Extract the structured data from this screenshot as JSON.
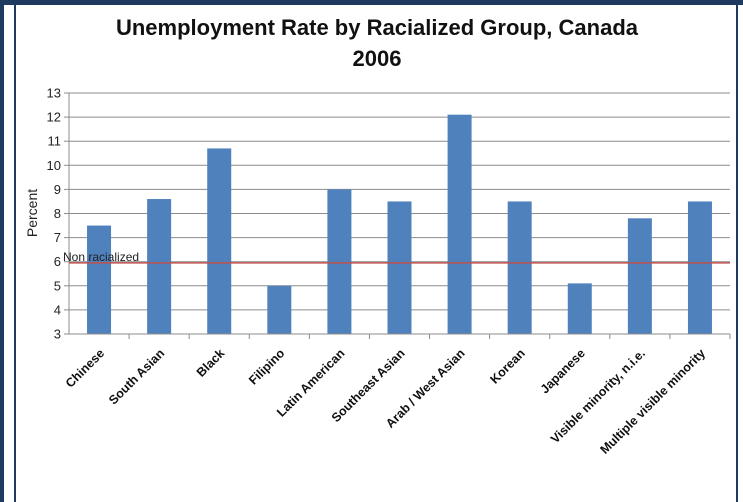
{
  "chart_data": {
    "type": "bar",
    "title_line1": "Unemployment Rate by Racialized Group, Canada",
    "title_line2": "2006",
    "xlabel": "",
    "ylabel": "Percent",
    "ylim": [
      3,
      13
    ],
    "yticks": [
      "3",
      "4",
      "5",
      "6",
      "7",
      "8",
      "9",
      "10",
      "11",
      "12",
      "13"
    ],
    "grid": true,
    "categories": [
      "Chinese",
      "South Asian",
      "Black",
      "Filipino",
      "Latin American",
      "Southeast Asian",
      "Arab / West Asian",
      "Korean",
      "Japanese",
      "Visible minority, n.i.e.",
      "Multiple visible minority"
    ],
    "values": [
      7.5,
      8.6,
      10.7,
      5.0,
      9.0,
      8.5,
      12.1,
      8.5,
      5.1,
      7.8,
      8.5
    ],
    "reference_line": {
      "label": "Non racialized",
      "value": 5.95,
      "color": "#c0504d"
    },
    "bar_color": "#4f81bd"
  }
}
